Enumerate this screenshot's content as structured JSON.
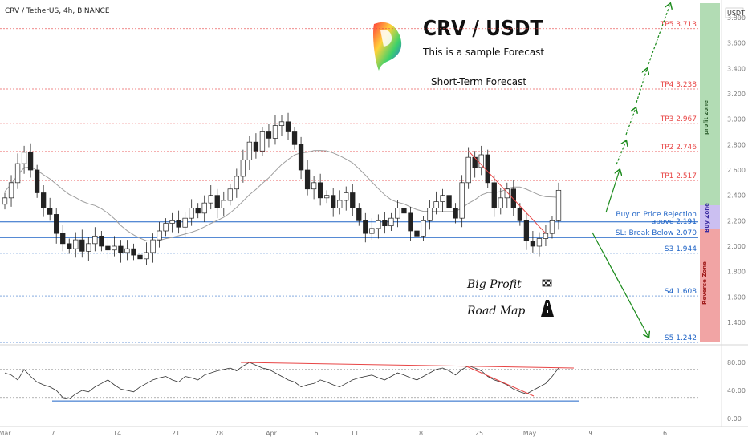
{
  "header": {
    "symbol_line": "CRV / TetherUS, 4h, BINANCE"
  },
  "titles": {
    "main": "CRV / USDT",
    "subtitle": "This is a sample Forecast",
    "forecast": "Short-Term Forecast",
    "big_profit": "Big Profit",
    "road_map": "Road Map"
  },
  "axis": {
    "currency": "USDT"
  },
  "zones": {
    "profit": "profit zone",
    "buy": "Buy Zone",
    "reverse": "Reverse Zone"
  },
  "colors": {
    "bull": "#26a69a",
    "bear": "#ef5350",
    "green": "#1a8a1a",
    "blue": "#1e63c6",
    "red": "#e84545"
  },
  "chart_data": [
    {
      "type": "candlestick",
      "title": "CRV / TetherUS, 4h, BINANCE",
      "ylabel": "USDT",
      "ylim": [
        1.242,
        3.85
      ],
      "y_ticks": [
        "3.800",
        "3.600",
        "3.400",
        "3.200",
        "3.000",
        "2.800",
        "2.600",
        "2.400",
        "2.200",
        "2.000",
        "1.800",
        "1.600",
        "1.400"
      ],
      "x_ticks": [
        "Mar",
        "7",
        "14",
        "21",
        "28",
        "Apr",
        "6",
        "11",
        "18",
        "25",
        "May",
        "9",
        "16"
      ],
      "levels": [
        {
          "label": "TP5 3.713",
          "value": 3.713,
          "color": "#e84545"
        },
        {
          "label": "TP4 3.238",
          "value": 3.238,
          "color": "#e84545"
        },
        {
          "label": "TP3 2.967",
          "value": 2.967,
          "color": "#e84545"
        },
        {
          "label": "TP2 2.746",
          "value": 2.746,
          "color": "#e84545"
        },
        {
          "label": "TP1 2.517",
          "value": 2.517,
          "color": "#e84545"
        },
        {
          "label": "Buy on Price Rejection above 2.191",
          "value": 2.191,
          "color": "#1e63c6"
        },
        {
          "label": "SL: Break Below 2.070",
          "value": 2.07,
          "color": "#1e63c6"
        },
        {
          "label": "S3 1.944",
          "value": 1.944,
          "color": "#1e63c6"
        },
        {
          "label": "S4 1.608",
          "value": 1.608,
          "color": "#1e63c6"
        },
        {
          "label": "S5 1.242",
          "value": 1.242,
          "color": "#1e63c6"
        }
      ],
      "closes": [
        2.38,
        2.5,
        2.65,
        2.74,
        2.6,
        2.42,
        2.3,
        2.25,
        2.1,
        2.02,
        1.98,
        2.05,
        1.96,
        2.02,
        2.08,
        2.0,
        1.97,
        2.0,
        1.95,
        1.98,
        1.93,
        1.9,
        1.95,
        2.05,
        2.12,
        2.18,
        2.2,
        2.15,
        2.22,
        2.3,
        2.26,
        2.34,
        2.4,
        2.3,
        2.36,
        2.45,
        2.55,
        2.68,
        2.82,
        2.75,
        2.9,
        2.85,
        2.95,
        2.98,
        2.9,
        2.8,
        2.6,
        2.45,
        2.5,
        2.38,
        2.4,
        2.3,
        2.36,
        2.42,
        2.3,
        2.2,
        2.1,
        2.14,
        2.2,
        2.16,
        2.22,
        2.3,
        2.26,
        2.12,
        2.08,
        2.2,
        2.3,
        2.35,
        2.4,
        2.3,
        2.22,
        2.5,
        2.7,
        2.62,
        2.72,
        2.5,
        2.3,
        2.38,
        2.45,
        2.3,
        2.2,
        2.04,
        2.0,
        2.06,
        2.1,
        2.2,
        2.44
      ],
      "ma_note": "moving average line",
      "projection_arrows": "dashed green up arrows and solid arrows"
    },
    {
      "type": "line",
      "title": "",
      "y_ticks": [
        "80.00",
        "40.00",
        "0.00"
      ],
      "ylim": [
        0,
        100
      ],
      "values": [
        65,
        62,
        55,
        70,
        60,
        52,
        48,
        45,
        40,
        30,
        28,
        35,
        40,
        38,
        45,
        50,
        55,
        48,
        42,
        40,
        38,
        45,
        50,
        55,
        58,
        60,
        55,
        52,
        60,
        58,
        55,
        62,
        65,
        68,
        70,
        72,
        68,
        75,
        80,
        76,
        72,
        70,
        65,
        60,
        55,
        52,
        45,
        48,
        50,
        55,
        52,
        48,
        45,
        50,
        55,
        58,
        60,
        62,
        58,
        55,
        60,
        65,
        62,
        58,
        55,
        60,
        65,
        70,
        72,
        68,
        62,
        70,
        75,
        72,
        68,
        60,
        55,
        52,
        48,
        42,
        38,
        35,
        40,
        45,
        50,
        60,
        72
      ]
    }
  ]
}
